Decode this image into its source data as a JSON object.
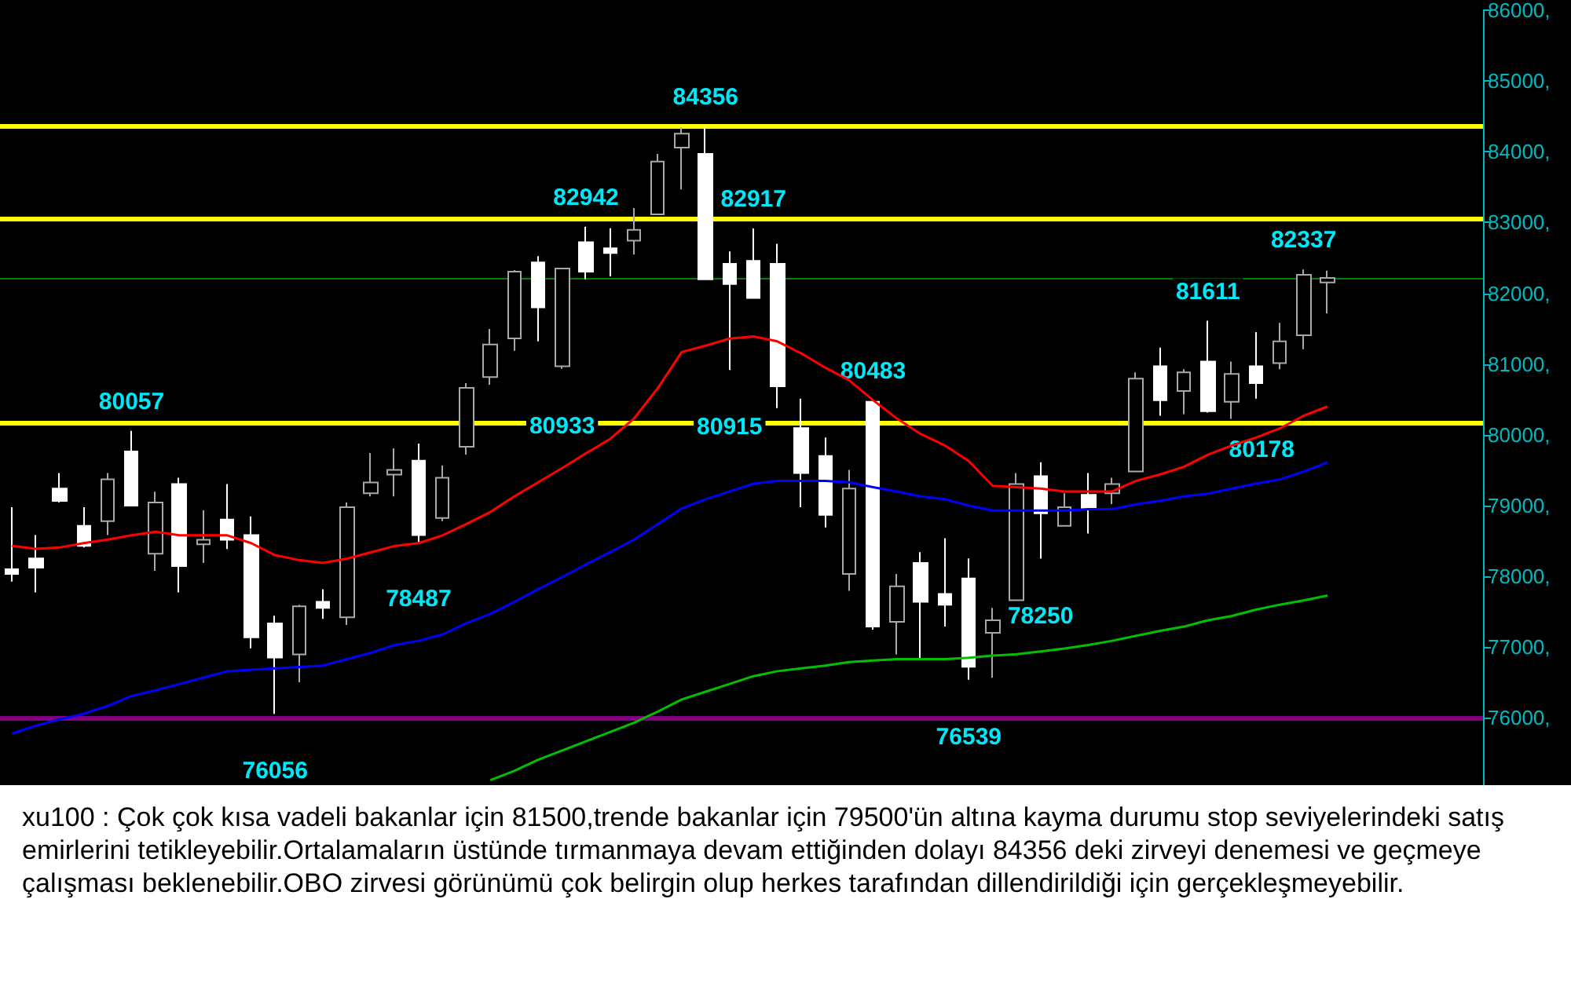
{
  "chart_data": {
    "type": "candlestick",
    "categories": [
      null,
      null,
      null,
      null,
      null,
      null,
      null,
      null,
      null,
      null,
      null,
      null,
      null,
      null,
      null,
      null,
      null,
      null,
      null,
      null,
      null,
      null,
      null,
      null,
      null,
      null,
      null,
      null,
      null,
      null,
      null,
      null,
      null,
      null,
      null,
      null,
      null,
      null,
      null,
      null,
      null,
      null,
      null,
      null,
      null,
      null,
      null,
      null,
      null,
      null,
      null,
      null,
      null,
      null,
      null,
      null,
      null,
      null,
      null,
      null,
      null,
      null
    ],
    "ohlc": [
      [
        78101,
        78977,
        77926,
        78035
      ],
      [
        78254,
        78583,
        77773,
        78123
      ],
      [
        79240,
        79459,
        79043,
        79065
      ],
      [
        78715,
        78977,
        78408,
        78430
      ],
      [
        78780,
        79459,
        78583,
        79371
      ],
      [
        79766,
        80057,
        78999,
        78999
      ],
      [
        78320,
        79196,
        78079,
        79043
      ],
      [
        79306,
        79393,
        77773,
        78145
      ],
      [
        78452,
        78933,
        78189,
        78517
      ],
      [
        78802,
        79306,
        78386,
        78517
      ],
      [
        78583,
        78846,
        76984,
        77138
      ],
      [
        77335,
        77444,
        76056,
        76853
      ],
      [
        76897,
        77598,
        76503,
        77576
      ],
      [
        77641,
        77817,
        77400,
        77554
      ],
      [
        77422,
        79043,
        77313,
        78977
      ],
      [
        79174,
        79744,
        79131,
        79328
      ],
      [
        79437,
        79809,
        79131,
        79503
      ],
      [
        79634,
        79875,
        78487,
        78583
      ],
      [
        78824,
        79569,
        78780,
        79393
      ],
      [
        79831,
        80729,
        79722,
        80664
      ],
      [
        80817,
        81496,
        80707,
        81277
      ],
      [
        81364,
        82328,
        81189,
        82306
      ],
      [
        82437,
        82525,
        81321,
        81802
      ],
      [
        80970,
        82350,
        80933,
        82350
      ],
      [
        82722,
        82942,
        82197,
        82306
      ],
      [
        82635,
        82919,
        82240,
        82569
      ],
      [
        82744,
        83204,
        82547,
        82897
      ],
      [
        83116,
        83970,
        83116,
        83861
      ],
      [
        84058,
        84343,
        83467,
        84255
      ],
      [
        83970,
        84356,
        82197,
        82197
      ],
      [
        82416,
        82591,
        80915,
        82131
      ],
      [
        82459,
        82917,
        81934,
        81934
      ],
      [
        82416,
        82700,
        80379,
        80685
      ],
      [
        80094,
        80510,
        78977,
        79459
      ],
      [
        79700,
        79963,
        78693,
        78868
      ],
      [
        78035,
        79503,
        77795,
        79240
      ],
      [
        80467,
        80483,
        77247,
        77291
      ],
      [
        77357,
        78035,
        76897,
        77860
      ],
      [
        78189,
        78342,
        76831,
        77641
      ],
      [
        77751,
        78539,
        77291,
        77598
      ],
      [
        77970,
        78254,
        76539,
        76722
      ],
      [
        77203,
        77554,
        76568,
        77379
      ],
      [
        77663,
        79459,
        77663,
        79306
      ],
      [
        79415,
        79612,
        78250,
        78890
      ],
      [
        78715,
        79174,
        78715,
        78977
      ],
      [
        79152,
        79459,
        78605,
        78955
      ],
      [
        79174,
        79393,
        79021,
        79306
      ],
      [
        79481,
        80883,
        79481,
        80795
      ],
      [
        80970,
        81233,
        80269,
        80488
      ],
      [
        80620,
        80926,
        80291,
        80883
      ],
      [
        81036,
        81611,
        80313,
        80335
      ],
      [
        80467,
        81036,
        80226,
        80861
      ],
      [
        80970,
        81452,
        80510,
        80729
      ],
      [
        81014,
        81583,
        80926,
        81321
      ],
      [
        81408,
        82337,
        81211,
        82262
      ],
      [
        82153,
        82320,
        81715,
        82218
      ],
      null,
      null,
      null,
      null,
      null,
      null
    ],
    "series": [
      {
        "type": "line",
        "color": "#ff0000",
        "values": [
          78430,
          78390,
          78410,
          78470,
          78520,
          78580,
          78630,
          78580,
          78580,
          78580,
          78470,
          78300,
          78230,
          78190,
          78250,
          78340,
          78430,
          78470,
          78580,
          78740,
          78910,
          79130,
          79330,
          79530,
          79740,
          79940,
          80230,
          80660,
          81170,
          81260,
          81360,
          81390,
          81320,
          81150,
          80950,
          80770,
          80490,
          80230,
          80010,
          79850,
          79630,
          79280,
          79260,
          79240,
          79200,
          79200,
          79200,
          79350,
          79440,
          79550,
          79720,
          79850,
          79960,
          80090,
          80270,
          80400,
          null,
          null,
          null,
          null,
          null,
          null
        ]
      },
      {
        "type": "line",
        "color": "#0000ff",
        "values": [
          75780,
          75890,
          75980,
          76060,
          76170,
          76310,
          76390,
          76480,
          76570,
          76660,
          76680,
          76700,
          76720,
          76740,
          76830,
          76920,
          77030,
          77090,
          77180,
          77340,
          77470,
          77640,
          77820,
          77990,
          78170,
          78340,
          78520,
          78740,
          78960,
          79090,
          79200,
          79310,
          79350,
          79350,
          79350,
          79330,
          79260,
          79200,
          79130,
          79090,
          79000,
          78930,
          78930,
          78930,
          78930,
          78950,
          78950,
          79020,
          79070,
          79130,
          79170,
          79240,
          79310,
          79370,
          79480,
          79610,
          null,
          null,
          null,
          null,
          null,
          null
        ]
      },
      {
        "type": "line",
        "color": "#00c000",
        "values": [
          null,
          null,
          null,
          null,
          null,
          null,
          null,
          null,
          null,
          null,
          null,
          null,
          null,
          null,
          null,
          null,
          null,
          null,
          null,
          null,
          75120,
          75250,
          75410,
          75540,
          75670,
          75800,
          75930,
          76090,
          76260,
          76370,
          76480,
          76590,
          76660,
          76700,
          76740,
          76790,
          76810,
          76830,
          76830,
          76830,
          76850,
          76880,
          76900,
          76940,
          76980,
          77030,
          77090,
          77160,
          77230,
          77290,
          77380,
          77440,
          77530,
          77600,
          77660,
          77730,
          null,
          null,
          null,
          null,
          null,
          null
        ]
      }
    ],
    "ylim": [
      75050,
      86000
    ],
    "yticks": [
      {
        "value": 76000,
        "label": "76000,"
      },
      {
        "value": 77000,
        "label": "77000,"
      },
      {
        "value": 78000,
        "label": "78000,"
      },
      {
        "value": 79000,
        "label": "79000,"
      },
      {
        "value": 80000,
        "label": "80000,"
      },
      {
        "value": 81000,
        "label": "81000,"
      },
      {
        "value": 82000,
        "label": "82000,"
      },
      {
        "value": 83000,
        "label": "83000,"
      },
      {
        "value": 84000,
        "label": "84000,"
      },
      {
        "value": 85000,
        "label": "85000,"
      },
      {
        "value": 86000,
        "label": "86000,"
      }
    ],
    "tick_labels": "y",
    "ref_lines": [
      {
        "axis": "y",
        "value": 84356,
        "color": "#ffff00"
      },
      {
        "axis": "y",
        "value": 83050,
        "color": "#ffff00"
      },
      {
        "axis": "y",
        "value": 80178,
        "color": "#ffff00",
        "label": "80178"
      },
      {
        "axis": "y",
        "value": 76000,
        "color": "#800080"
      },
      {
        "axis": "y",
        "value": 82218,
        "color": "#008000"
      }
    ],
    "annotations": [
      {
        "text": "80057",
        "y": 80057
      },
      {
        "text": "78487",
        "y": 78487
      },
      {
        "text": "82942",
        "y": 82942
      },
      {
        "text": "80933",
        "y": 80933
      },
      {
        "text": "84356",
        "y": 84356
      },
      {
        "text": "82917",
        "y": 82917
      },
      {
        "text": "80915",
        "y": 80915
      },
      {
        "text": "80483",
        "y": 80483
      },
      {
        "text": "76056",
        "y": 76056
      },
      {
        "text": "76539",
        "y": 76539
      },
      {
        "text": "78250",
        "y": 78250
      },
      {
        "text": "81611",
        "y": 81611
      },
      {
        "text": "82337",
        "y": 82337
      },
      "xu100 : Çok çok kısa vadeli bakanlar için 81500,trende bakanlar için 79500'ün altına kayma durumu stop seviyelerindeki satış emirlerini tetikleyebilir.Ortalamaların üstünde tırmanmaya devam ettiğinden dolayı 84356 deki zirveyi denemesi ve geçmeye çalışması beklenebilir.OBO zirvesi görünümü çok belirgin olup herkes tarafından dillendirildiği için gerçekleşmeyebilir."
    ]
  }
}
